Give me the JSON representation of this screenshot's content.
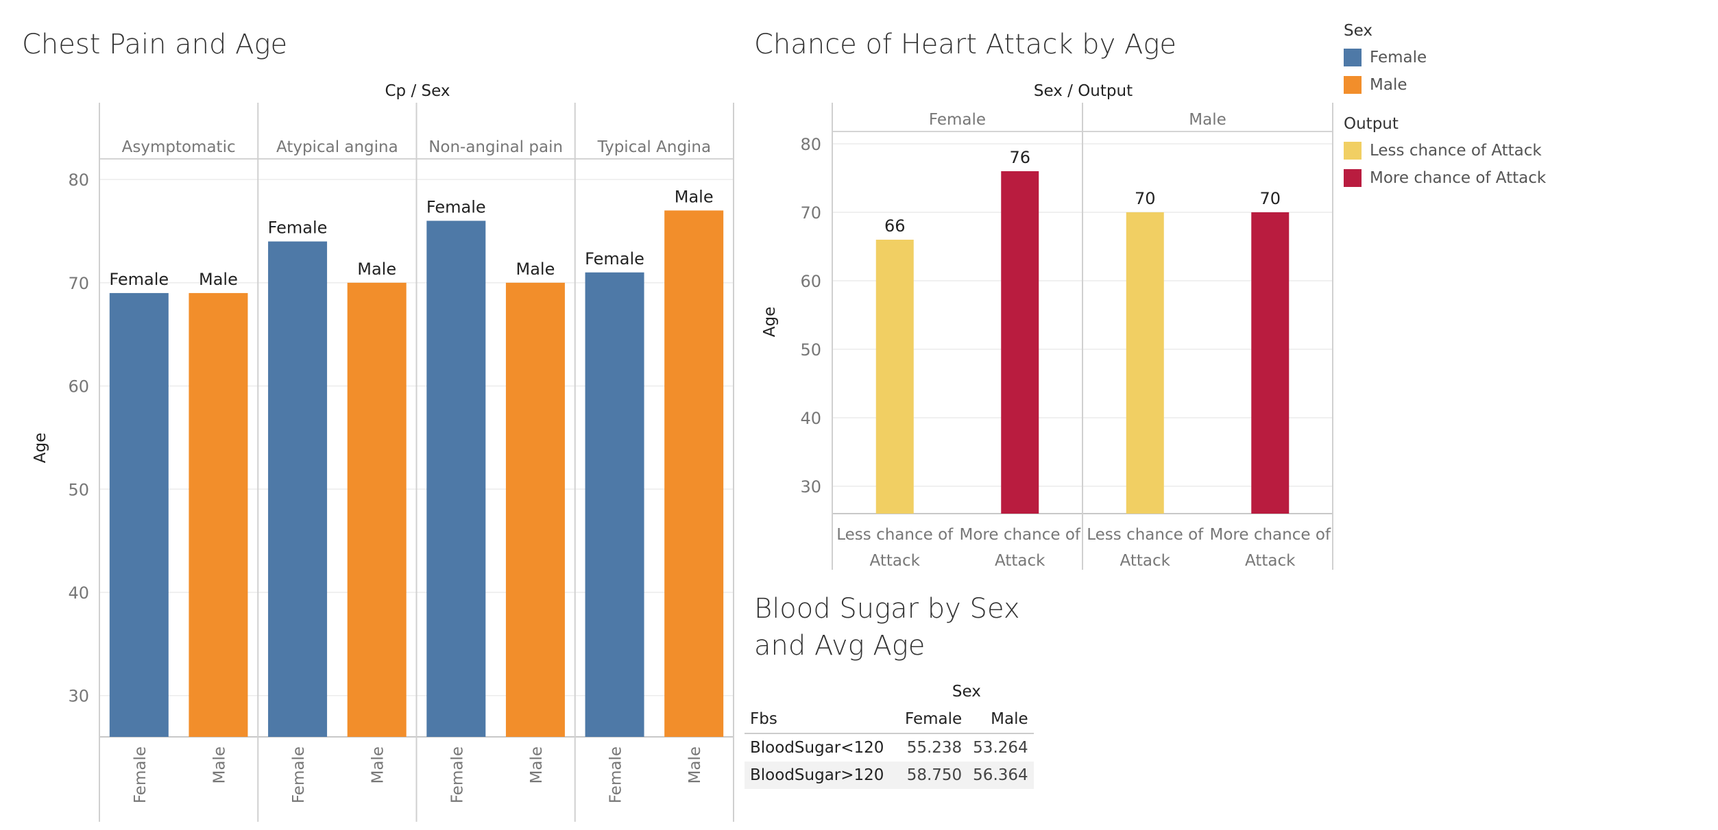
{
  "chart_data": [
    {
      "type": "bar",
      "title": "Chest Pain and Age",
      "column_header": "Cp  /  Sex",
      "ylabel": "Age",
      "ylim": [
        26,
        82
      ],
      "yticks": [
        30,
        40,
        50,
        60,
        70,
        80
      ],
      "groups": [
        {
          "name": "Asymptomatic",
          "bars": [
            {
              "sex": "Female",
              "value": 69
            },
            {
              "sex": "Male",
              "value": 69
            }
          ]
        },
        {
          "name": "Atypical angina",
          "bars": [
            {
              "sex": "Female",
              "value": 74
            },
            {
              "sex": "Male",
              "value": 70
            }
          ]
        },
        {
          "name": "Non-anginal pain",
          "bars": [
            {
              "sex": "Female",
              "value": 76
            },
            {
              "sex": "Male",
              "value": 70
            }
          ]
        },
        {
          "name": "Typical Angina",
          "bars": [
            {
              "sex": "Female",
              "value": 71
            },
            {
              "sex": "Male",
              "value": 77
            }
          ]
        }
      ],
      "colors": {
        "Female": "#4e79a7",
        "Male": "#f28e2b"
      },
      "grid": true
    },
    {
      "type": "bar",
      "title": "Chance of Heart Attack by Age",
      "column_header": "Sex  /  Output",
      "ylabel": "Age",
      "ylim": [
        26,
        82
      ],
      "yticks": [
        30,
        40,
        50,
        60,
        70,
        80
      ],
      "groups": [
        {
          "name": "Female",
          "bars": [
            {
              "output": "Less chance of Attack",
              "label_lines": [
                "Less chance of",
                "Attack"
              ],
              "value": 66
            },
            {
              "output": "More chance of Attack",
              "label_lines": [
                "More chance of",
                "Attack"
              ],
              "value": 76
            }
          ]
        },
        {
          "name": "Male",
          "bars": [
            {
              "output": "Less chance of Attack",
              "label_lines": [
                "Less chance of",
                "Attack"
              ],
              "value": 70
            },
            {
              "output": "More chance of Attack",
              "label_lines": [
                "More chance of",
                "Attack"
              ],
              "value": 70
            }
          ]
        }
      ],
      "colors": {
        "Less chance of Attack": "#f1cf63",
        "More chance of Attack": "#b91c3f"
      },
      "grid": true
    },
    {
      "type": "table",
      "title_line1": "Blood Sugar by Sex",
      "title_line2": "and Avg Age",
      "column_group": "Sex",
      "row_header": "Fbs",
      "columns": [
        "Female",
        "Male"
      ],
      "rows": [
        {
          "label": "BloodSugar<120",
          "values": [
            "55.238",
            "53.264"
          ]
        },
        {
          "label": "BloodSugar>120",
          "values": [
            "58.750",
            "56.364"
          ]
        }
      ]
    }
  ],
  "legend": {
    "sex_title": "Sex",
    "sex_items": [
      {
        "label": "Female",
        "color": "#4e79a7"
      },
      {
        "label": "Male",
        "color": "#f28e2b"
      }
    ],
    "output_title": "Output",
    "output_items": [
      {
        "label": "Less chance of Attack",
        "color": "#f1cf63"
      },
      {
        "label": "More chance of Attack",
        "color": "#b91c3f"
      }
    ]
  }
}
